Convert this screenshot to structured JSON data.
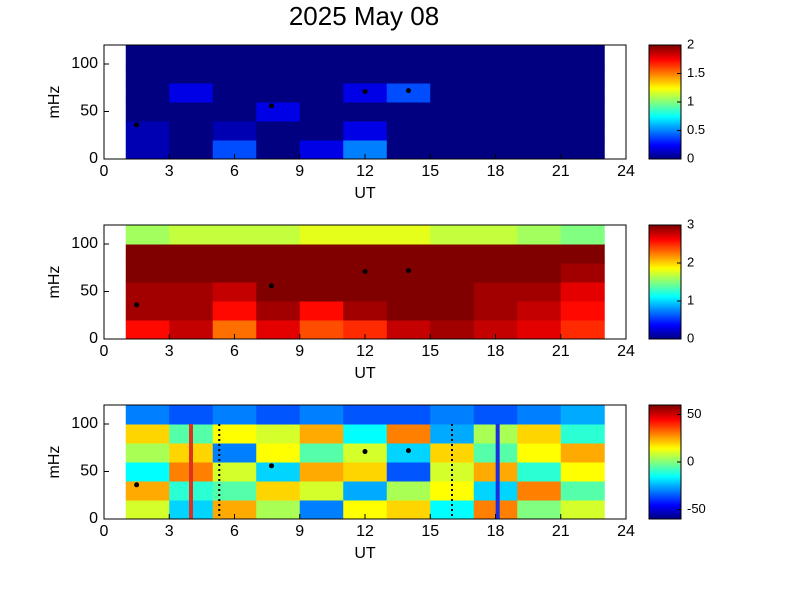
{
  "chart_data": [
    {
      "type": "heatmap",
      "title": "2025 May 08",
      "xlabel": "UT",
      "ylabel": "mHz",
      "xlim": [
        0,
        24
      ],
      "xticks": [
        0,
        3,
        6,
        9,
        12,
        15,
        18,
        21,
        24
      ],
      "ylim": [
        0,
        120
      ],
      "yticks": [
        0,
        50,
        100
      ],
      "x": [
        1,
        3,
        5,
        7,
        9,
        11,
        13,
        15,
        17,
        19,
        21,
        23
      ],
      "y": [
        0,
        20,
        40,
        60,
        80,
        100,
        120
      ],
      "z": [
        [
          0.1,
          0,
          0.4,
          0,
          0.2,
          0.5,
          0,
          0,
          0,
          0,
          0
        ],
        [
          0.1,
          0,
          0.1,
          0,
          0,
          0.2,
          0,
          0,
          0,
          0,
          0
        ],
        [
          0,
          0,
          0,
          0.2,
          0,
          0,
          0,
          0,
          0,
          0,
          0
        ],
        [
          0,
          0.2,
          0,
          0,
          0,
          0.2,
          0.4,
          0,
          0,
          0,
          0
        ],
        [
          0,
          0,
          0,
          0,
          0,
          0,
          0,
          0,
          0,
          0,
          0
        ],
        [
          0,
          0,
          0,
          0,
          0,
          0,
          0,
          0,
          0,
          0,
          0
        ]
      ],
      "clim": [
        0,
        2
      ],
      "cticks": [
        0,
        0.5,
        1,
        1.5,
        2
      ],
      "markers": {
        "x": [
          1.5,
          7.7,
          12,
          14
        ],
        "y": [
          36,
          56,
          71,
          72
        ]
      }
    },
    {
      "type": "heatmap",
      "xlabel": "UT",
      "ylabel": "mHz",
      "xlim": [
        0,
        24
      ],
      "xticks": [
        0,
        3,
        6,
        9,
        12,
        15,
        18,
        21,
        24
      ],
      "ylim": [
        0,
        120
      ],
      "yticks": [
        0,
        50,
        100
      ],
      "x": [
        1,
        3,
        5,
        7,
        9,
        11,
        13,
        15,
        17,
        19,
        21,
        23
      ],
      "y": [
        0,
        20,
        40,
        60,
        80,
        100,
        120
      ],
      "z": [
        [
          2.6,
          2.8,
          2.3,
          2.7,
          2.4,
          2.5,
          2.8,
          2.9,
          2.8,
          2.7,
          2.5
        ],
        [
          2.9,
          2.9,
          2.6,
          2.9,
          2.6,
          2.9,
          3,
          3,
          2.9,
          2.8,
          2.6
        ],
        [
          2.9,
          2.9,
          2.8,
          3,
          3,
          3,
          3,
          3,
          2.9,
          2.9,
          2.7
        ],
        [
          3,
          3,
          3,
          3,
          3,
          3,
          3,
          3,
          3,
          3,
          2.9
        ],
        [
          3,
          3,
          3,
          3,
          3,
          3,
          3,
          3,
          3,
          3,
          3
        ],
        [
          1.6,
          1.7,
          1.7,
          1.7,
          1.8,
          1.8,
          1.8,
          1.7,
          1.7,
          1.6,
          1.5
        ]
      ],
      "clim": [
        0,
        3
      ],
      "cticks": [
        0,
        1,
        2,
        3
      ],
      "markers": {
        "x": [
          1.5,
          7.7,
          12,
          14
        ],
        "y": [
          36,
          56,
          71,
          72
        ]
      }
    },
    {
      "type": "heatmap",
      "xlabel": "UT",
      "ylabel": "mHz",
      "xlim": [
        0,
        24
      ],
      "xticks": [
        0,
        3,
        6,
        9,
        12,
        15,
        18,
        21,
        24
      ],
      "ylim": [
        0,
        120
      ],
      "yticks": [
        0,
        50,
        100
      ],
      "x": [
        1,
        3,
        5,
        7,
        9,
        11,
        13,
        15,
        17,
        19,
        21,
        23
      ],
      "y": [
        0,
        20,
        40,
        60,
        80,
        100,
        120
      ],
      "z": [
        [
          10,
          -20,
          25,
          5,
          -30,
          15,
          20,
          -15,
          30,
          0,
          10
        ],
        [
          25,
          -10,
          -5,
          20,
          10,
          -25,
          5,
          15,
          -20,
          30,
          -5
        ],
        [
          -15,
          30,
          10,
          -20,
          25,
          20,
          -35,
          10,
          25,
          -10,
          15
        ],
        [
          5,
          20,
          -30,
          15,
          -5,
          10,
          -20,
          20,
          -5,
          15,
          25
        ],
        [
          20,
          -5,
          15,
          10,
          25,
          -15,
          30,
          -25,
          5,
          20,
          -10
        ],
        [
          -30,
          -35,
          -30,
          -35,
          -30,
          -35,
          -35,
          -30,
          -35,
          -30,
          -25
        ]
      ],
      "clim": [
        -60,
        60
      ],
      "cticks": [
        -50,
        0,
        50
      ],
      "markers": {
        "x": [
          1.5,
          7.7,
          12,
          14
        ],
        "y": [
          36,
          56,
          71,
          72
        ]
      },
      "vlines": [
        {
          "x": 4,
          "color": "#e0301e",
          "style": "solid"
        },
        {
          "x": 5.3,
          "color": "#000000",
          "style": "dotted"
        },
        {
          "x": 16,
          "color": "#000000",
          "style": "dotted"
        },
        {
          "x": 18.1,
          "color": "#1c2ee0",
          "style": "solid"
        }
      ]
    }
  ]
}
